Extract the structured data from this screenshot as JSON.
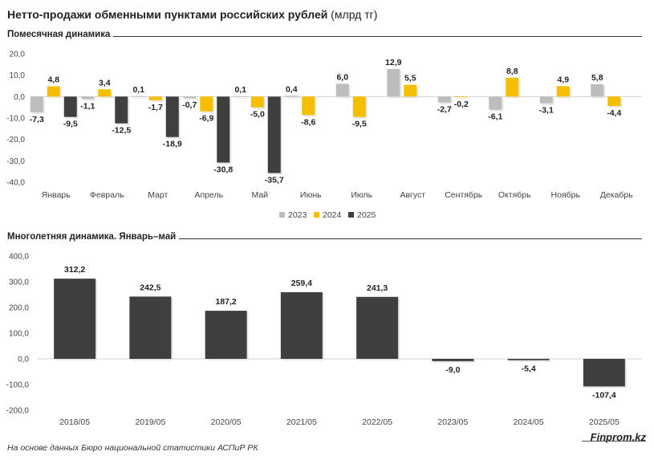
{
  "header": {
    "title": "Нетто-продажи обменными пунктами российских рублей",
    "unit": "(млрд тг)"
  },
  "footer": {
    "source": "На основе данных Бюро национальной статистики АСПиР РК",
    "brand": "Finprom.kz"
  },
  "colors": {
    "2023": "#bdbdbd",
    "2024": "#f5bf00",
    "2025": "#3f3f3f",
    "multi": "#3f3f3f"
  },
  "chart_data": [
    {
      "type": "bar",
      "title": "Помесячная динамика",
      "categories": [
        "Январь",
        "Февраль",
        "Март",
        "Апрель",
        "Май",
        "Июнь",
        "Июль",
        "Август",
        "Сентябрь",
        "Октябрь",
        "Ноябрь",
        "Декабрь"
      ],
      "series": [
        {
          "name": "2023",
          "values": [
            -7.3,
            -1.1,
            0.1,
            -0.7,
            0.1,
            0.4,
            6.0,
            12.9,
            -2.7,
            -6.1,
            -3.1,
            5.8
          ]
        },
        {
          "name": "2024",
          "values": [
            4.8,
            3.4,
            -1.7,
            -6.9,
            -5.0,
            -8.6,
            -9.5,
            5.5,
            -0.2,
            8.8,
            4.9,
            -4.4
          ]
        },
        {
          "name": "2025",
          "values": [
            -9.5,
            -12.5,
            -18.9,
            -30.8,
            -35.7,
            null,
            null,
            null,
            null,
            null,
            null,
            null
          ]
        }
      ],
      "yticks": [
        "20,0",
        "10,0",
        "0,0",
        "-10,0",
        "-20,0",
        "-30,0",
        "-40,0"
      ],
      "ylim": [
        -40,
        20
      ],
      "legend_position": "bottom-center",
      "grid": false
    },
    {
      "type": "bar",
      "title": "Многолетняя динамика. Январь–май",
      "categories": [
        "2018/05",
        "2019/05",
        "2020/05",
        "2021/05",
        "2022/05",
        "2023/05",
        "2024/05",
        "2025/05"
      ],
      "values": [
        312.2,
        242.5,
        187.2,
        259.4,
        241.3,
        -9.0,
        -5.4,
        -107.4
      ],
      "yticks": [
        "400,0",
        "300,0",
        "200,0",
        "100,0",
        "0,0",
        "-100,0",
        "-200,0"
      ],
      "ylim": [
        -200,
        400
      ],
      "grid": false
    }
  ]
}
